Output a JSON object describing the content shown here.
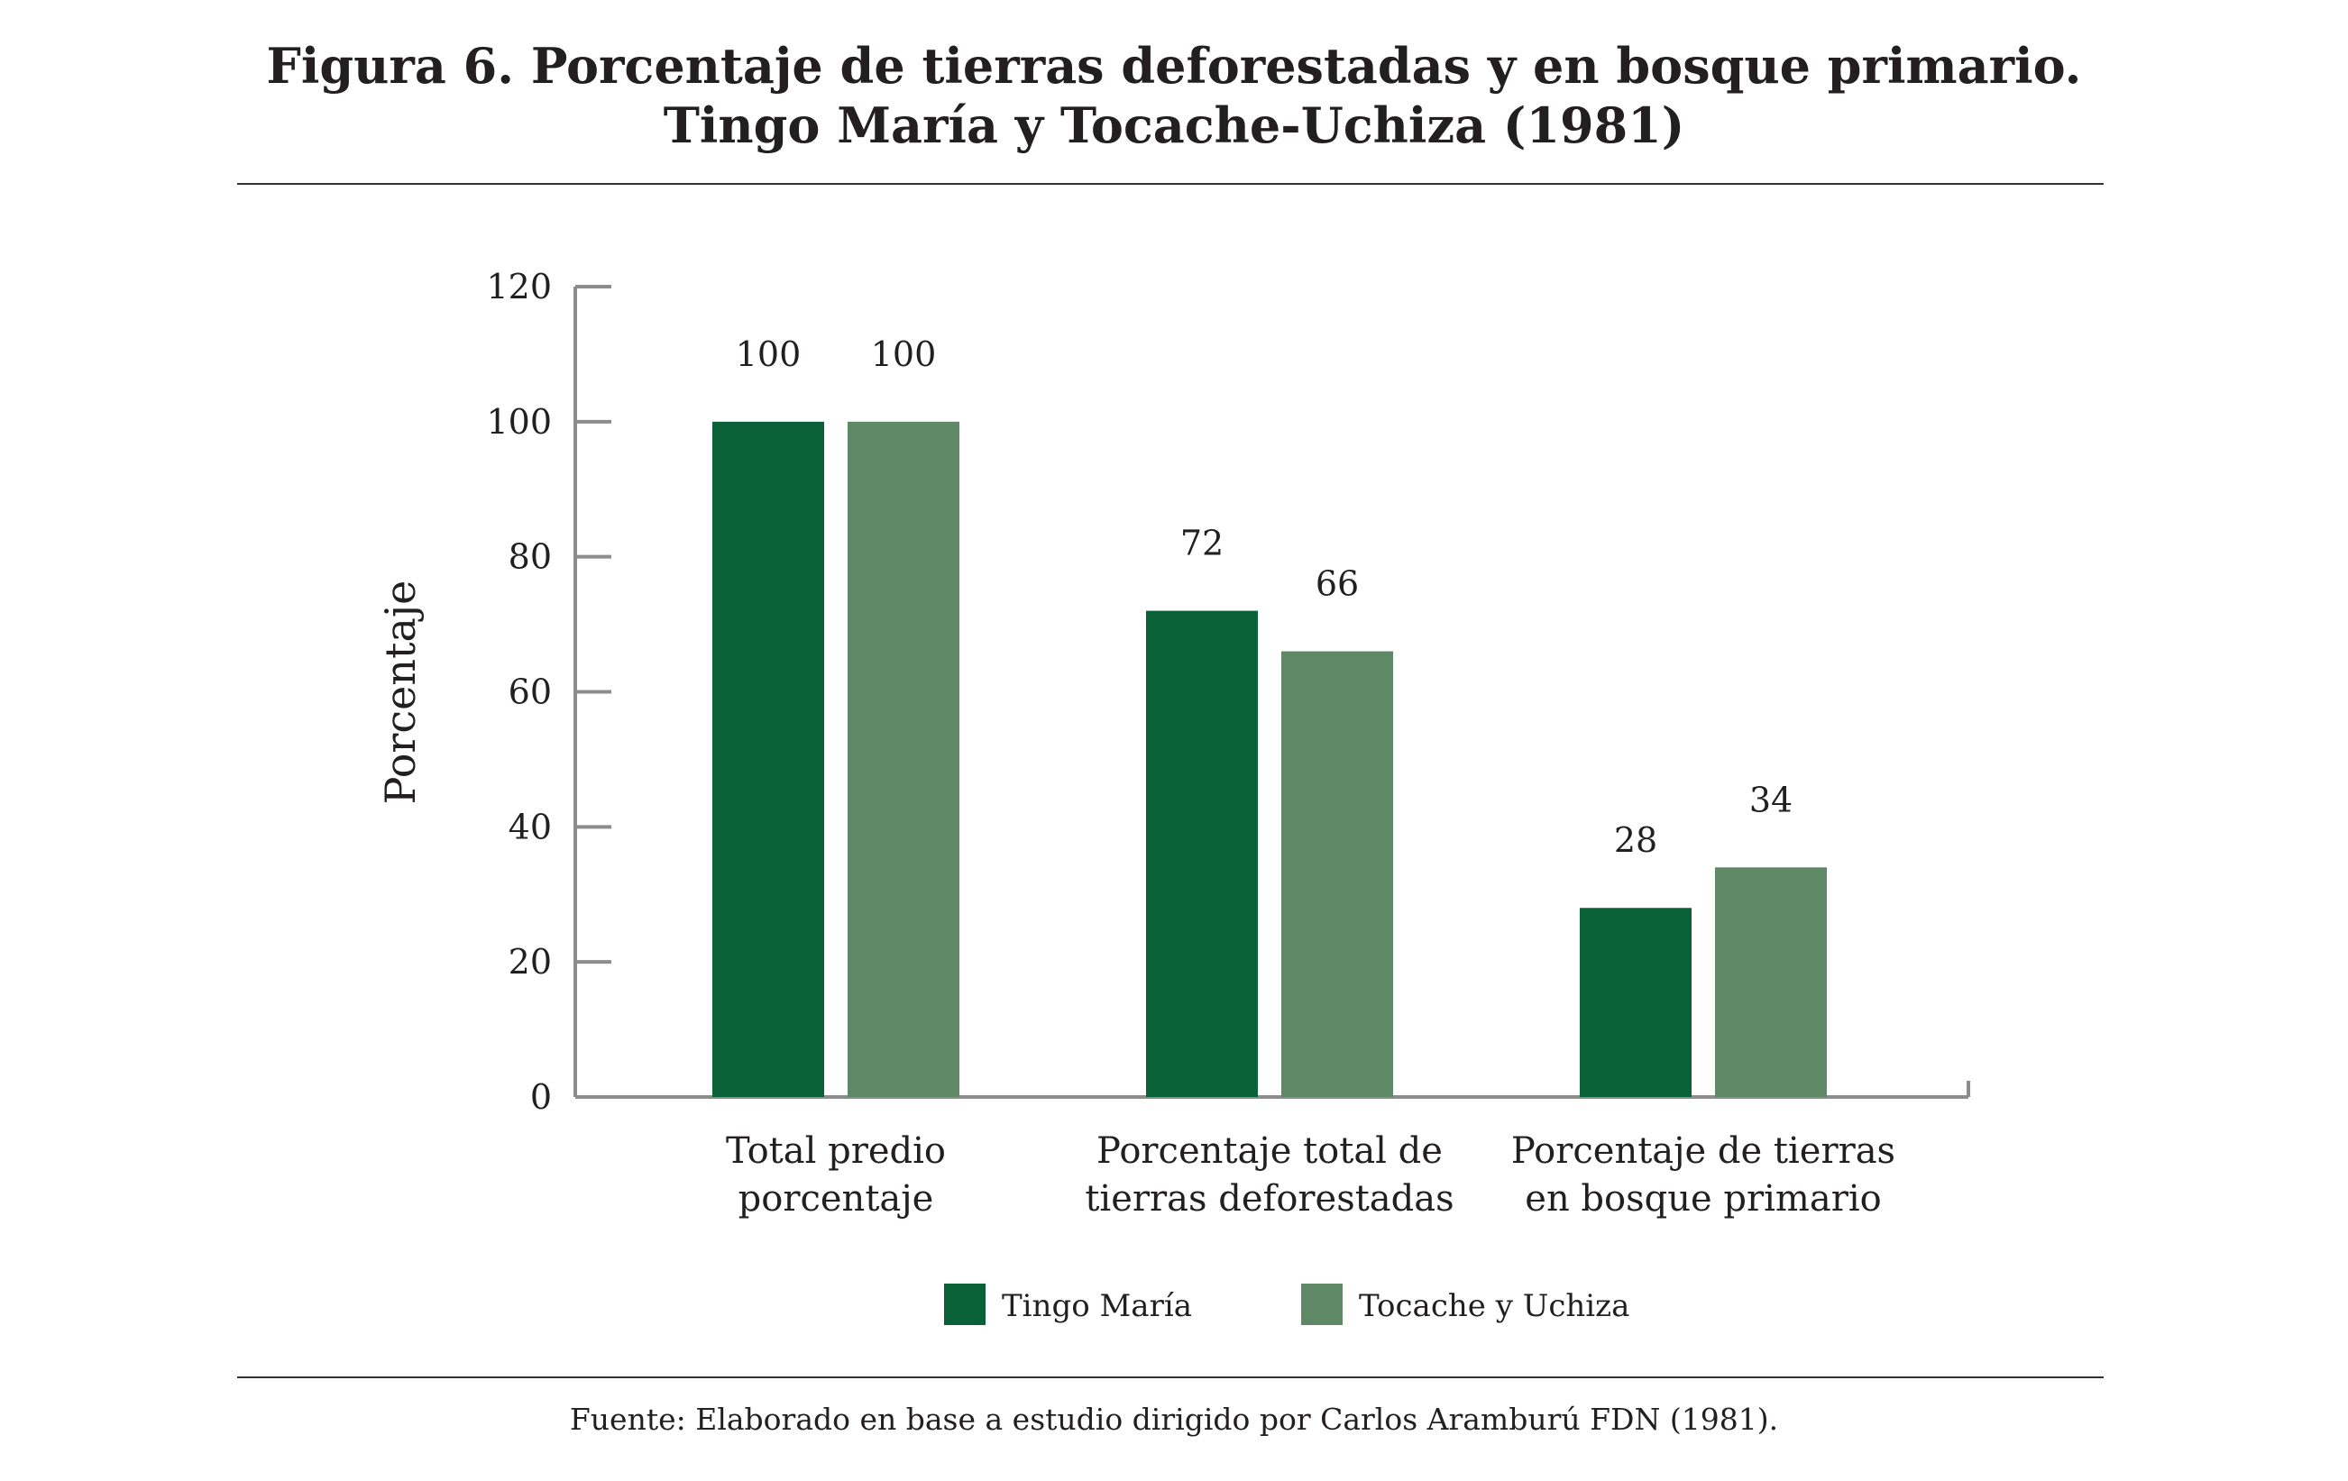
{
  "figure": {
    "title_line1": "Figura 6. Porcentaje de tierras deforestadas y en bosque primario.",
    "title_line2": "Tingo María y Tocache-Uchiza (1981)",
    "source": "Fuente: Elaborado en base a estudio dirigido por Carlos Aramburú FDN (1981)."
  },
  "chart_data": {
    "type": "bar",
    "title": "Figura 6. Porcentaje de tierras deforestadas y en bosque primario. Tingo María y Tocache-Uchiza (1981)",
    "ylabel": "Porcentaje",
    "xlabel": "",
    "ylim": [
      0,
      120
    ],
    "yticks": [
      0,
      20,
      40,
      60,
      80,
      100,
      120
    ],
    "grid": false,
    "legend_position": "bottom-center",
    "categories": [
      [
        "Total predio",
        "porcentaje"
      ],
      [
        "Porcentaje total de",
        "tierras deforestadas"
      ],
      [
        "Porcentaje de tierras",
        "en bosque primario"
      ]
    ],
    "series": [
      {
        "name": "Tingo María",
        "color": "#0a6138",
        "values": [
          100,
          72,
          28
        ]
      },
      {
        "name": "Tocache y Uchiza",
        "color": "#5f8866",
        "values": [
          100,
          66,
          34
        ]
      }
    ],
    "data_labels": true
  }
}
